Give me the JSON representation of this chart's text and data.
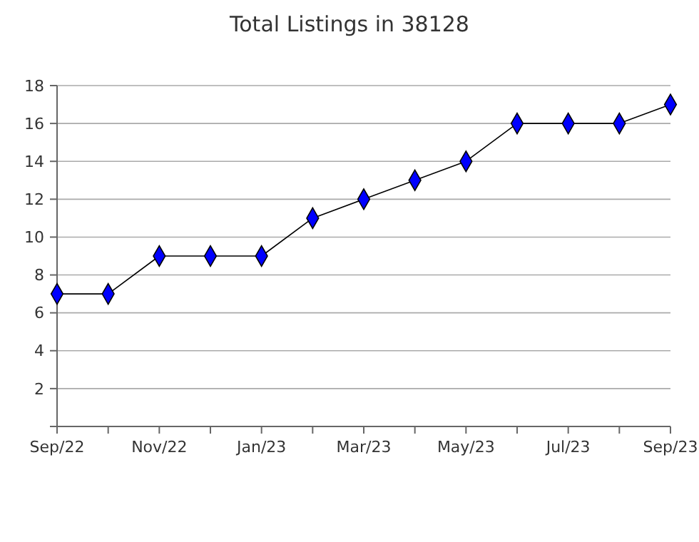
{
  "chart_data": {
    "type": "line",
    "title": "Total Listings in 38128",
    "categories": [
      "Sep/22",
      null,
      "Nov/22",
      null,
      "Jan/23",
      null,
      "Mar/23",
      null,
      "May/23",
      null,
      "Jul/23",
      null,
      "Sep/23"
    ],
    "series": [
      {
        "color": "#0000ff",
        "values": [
          7,
          7,
          9,
          9,
          9,
          11,
          12,
          13,
          14,
          16,
          16,
          16,
          17
        ]
      }
    ],
    "ylim": [
      0,
      18
    ],
    "yticks": [
      {
        "value": 0,
        "label": null
      },
      2,
      4,
      6,
      8,
      10,
      12,
      14,
      16,
      18
    ],
    "grid": "y",
    "marker": "diamond",
    "line_style": "solid"
  }
}
